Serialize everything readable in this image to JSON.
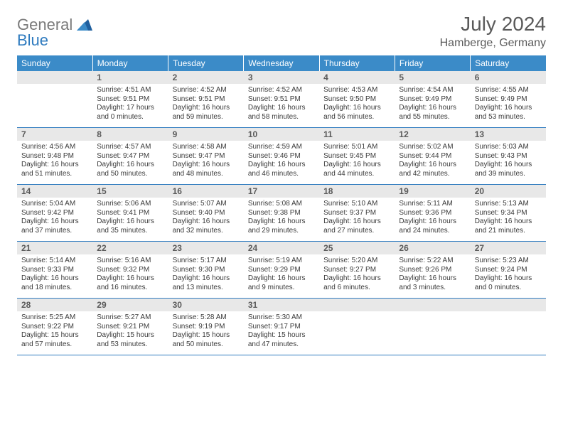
{
  "brand": {
    "part1": "General",
    "part2": "Blue"
  },
  "title": "July 2024",
  "location": "Hamberge, Germany",
  "colors": {
    "header_bg": "#3b8bc8",
    "header_text": "#ffffff",
    "daybar_bg": "#e8e8e8",
    "daybar_text": "#5a5a5a",
    "divider": "#2f7bbf",
    "body_text": "#3a3a3a",
    "title_text": "#5a5a5a",
    "logo_gray": "#7a7a7a",
    "logo_blue": "#2f7bbf"
  },
  "day_names": [
    "Sunday",
    "Monday",
    "Tuesday",
    "Wednesday",
    "Thursday",
    "Friday",
    "Saturday"
  ],
  "weeks": [
    [
      null,
      {
        "n": "1",
        "sunrise": "Sunrise: 4:51 AM",
        "sunset": "Sunset: 9:51 PM",
        "daylight": "Daylight: 17 hours and 0 minutes."
      },
      {
        "n": "2",
        "sunrise": "Sunrise: 4:52 AM",
        "sunset": "Sunset: 9:51 PM",
        "daylight": "Daylight: 16 hours and 59 minutes."
      },
      {
        "n": "3",
        "sunrise": "Sunrise: 4:52 AM",
        "sunset": "Sunset: 9:51 PM",
        "daylight": "Daylight: 16 hours and 58 minutes."
      },
      {
        "n": "4",
        "sunrise": "Sunrise: 4:53 AM",
        "sunset": "Sunset: 9:50 PM",
        "daylight": "Daylight: 16 hours and 56 minutes."
      },
      {
        "n": "5",
        "sunrise": "Sunrise: 4:54 AM",
        "sunset": "Sunset: 9:49 PM",
        "daylight": "Daylight: 16 hours and 55 minutes."
      },
      {
        "n": "6",
        "sunrise": "Sunrise: 4:55 AM",
        "sunset": "Sunset: 9:49 PM",
        "daylight": "Daylight: 16 hours and 53 minutes."
      }
    ],
    [
      {
        "n": "7",
        "sunrise": "Sunrise: 4:56 AM",
        "sunset": "Sunset: 9:48 PM",
        "daylight": "Daylight: 16 hours and 51 minutes."
      },
      {
        "n": "8",
        "sunrise": "Sunrise: 4:57 AM",
        "sunset": "Sunset: 9:47 PM",
        "daylight": "Daylight: 16 hours and 50 minutes."
      },
      {
        "n": "9",
        "sunrise": "Sunrise: 4:58 AM",
        "sunset": "Sunset: 9:47 PM",
        "daylight": "Daylight: 16 hours and 48 minutes."
      },
      {
        "n": "10",
        "sunrise": "Sunrise: 4:59 AM",
        "sunset": "Sunset: 9:46 PM",
        "daylight": "Daylight: 16 hours and 46 minutes."
      },
      {
        "n": "11",
        "sunrise": "Sunrise: 5:01 AM",
        "sunset": "Sunset: 9:45 PM",
        "daylight": "Daylight: 16 hours and 44 minutes."
      },
      {
        "n": "12",
        "sunrise": "Sunrise: 5:02 AM",
        "sunset": "Sunset: 9:44 PM",
        "daylight": "Daylight: 16 hours and 42 minutes."
      },
      {
        "n": "13",
        "sunrise": "Sunrise: 5:03 AM",
        "sunset": "Sunset: 9:43 PM",
        "daylight": "Daylight: 16 hours and 39 minutes."
      }
    ],
    [
      {
        "n": "14",
        "sunrise": "Sunrise: 5:04 AM",
        "sunset": "Sunset: 9:42 PM",
        "daylight": "Daylight: 16 hours and 37 minutes."
      },
      {
        "n": "15",
        "sunrise": "Sunrise: 5:06 AM",
        "sunset": "Sunset: 9:41 PM",
        "daylight": "Daylight: 16 hours and 35 minutes."
      },
      {
        "n": "16",
        "sunrise": "Sunrise: 5:07 AM",
        "sunset": "Sunset: 9:40 PM",
        "daylight": "Daylight: 16 hours and 32 minutes."
      },
      {
        "n": "17",
        "sunrise": "Sunrise: 5:08 AM",
        "sunset": "Sunset: 9:38 PM",
        "daylight": "Daylight: 16 hours and 29 minutes."
      },
      {
        "n": "18",
        "sunrise": "Sunrise: 5:10 AM",
        "sunset": "Sunset: 9:37 PM",
        "daylight": "Daylight: 16 hours and 27 minutes."
      },
      {
        "n": "19",
        "sunrise": "Sunrise: 5:11 AM",
        "sunset": "Sunset: 9:36 PM",
        "daylight": "Daylight: 16 hours and 24 minutes."
      },
      {
        "n": "20",
        "sunrise": "Sunrise: 5:13 AM",
        "sunset": "Sunset: 9:34 PM",
        "daylight": "Daylight: 16 hours and 21 minutes."
      }
    ],
    [
      {
        "n": "21",
        "sunrise": "Sunrise: 5:14 AM",
        "sunset": "Sunset: 9:33 PM",
        "daylight": "Daylight: 16 hours and 18 minutes."
      },
      {
        "n": "22",
        "sunrise": "Sunrise: 5:16 AM",
        "sunset": "Sunset: 9:32 PM",
        "daylight": "Daylight: 16 hours and 16 minutes."
      },
      {
        "n": "23",
        "sunrise": "Sunrise: 5:17 AM",
        "sunset": "Sunset: 9:30 PM",
        "daylight": "Daylight: 16 hours and 13 minutes."
      },
      {
        "n": "24",
        "sunrise": "Sunrise: 5:19 AM",
        "sunset": "Sunset: 9:29 PM",
        "daylight": "Daylight: 16 hours and 9 minutes."
      },
      {
        "n": "25",
        "sunrise": "Sunrise: 5:20 AM",
        "sunset": "Sunset: 9:27 PM",
        "daylight": "Daylight: 16 hours and 6 minutes."
      },
      {
        "n": "26",
        "sunrise": "Sunrise: 5:22 AM",
        "sunset": "Sunset: 9:26 PM",
        "daylight": "Daylight: 16 hours and 3 minutes."
      },
      {
        "n": "27",
        "sunrise": "Sunrise: 5:23 AM",
        "sunset": "Sunset: 9:24 PM",
        "daylight": "Daylight: 16 hours and 0 minutes."
      }
    ],
    [
      {
        "n": "28",
        "sunrise": "Sunrise: 5:25 AM",
        "sunset": "Sunset: 9:22 PM",
        "daylight": "Daylight: 15 hours and 57 minutes."
      },
      {
        "n": "29",
        "sunrise": "Sunrise: 5:27 AM",
        "sunset": "Sunset: 9:21 PM",
        "daylight": "Daylight: 15 hours and 53 minutes."
      },
      {
        "n": "30",
        "sunrise": "Sunrise: 5:28 AM",
        "sunset": "Sunset: 9:19 PM",
        "daylight": "Daylight: 15 hours and 50 minutes."
      },
      {
        "n": "31",
        "sunrise": "Sunrise: 5:30 AM",
        "sunset": "Sunset: 9:17 PM",
        "daylight": "Daylight: 15 hours and 47 minutes."
      },
      null,
      null,
      null
    ]
  ]
}
